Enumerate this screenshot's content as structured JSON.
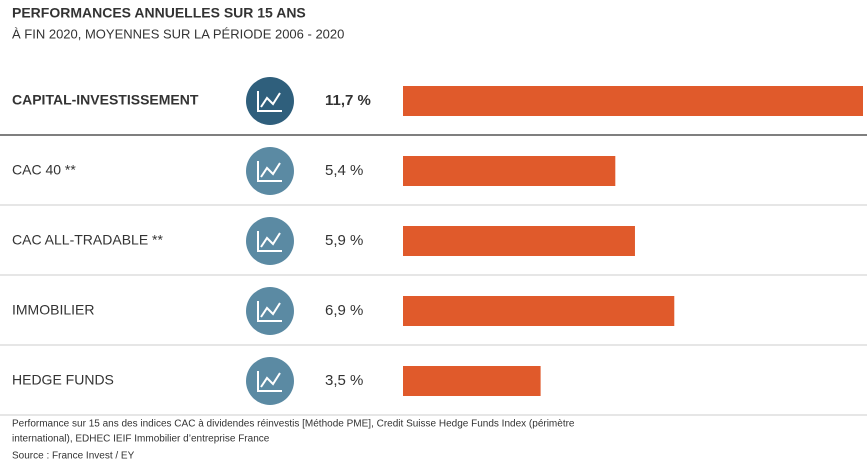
{
  "chart_data": {
    "type": "bar",
    "orientation": "horizontal",
    "title": "PERFORMANCES ANNUELLES SUR 15 ANS",
    "subtitle": "À FIN 2020, MOYENNES SUR LA PÉRIODE 2006 - 2020",
    "categories": [
      "CAPITAL-INVESTISSEMENT",
      "CAC 40 **",
      "CAC ALL-TRADABLE **",
      "IMMOBILIER",
      "HEDGE FUNDS"
    ],
    "values": [
      11.7,
      5.4,
      5.9,
      6.9,
      3.5
    ],
    "value_labels": [
      "11,7 %",
      "5,4 %",
      "5,9 %",
      "6,9 %",
      "3,5 %"
    ],
    "color": "#e05a2b",
    "notes": [
      "Performance sur 15 ans des indices CAC à dividendes réinvestis [Méthode PME], Credit Suisse Hedge Funds Index (périmètre",
      "international), EDHEC IEIF Immobilier d’entreprise France"
    ],
    "source": "Source : France Invest / EY"
  }
}
